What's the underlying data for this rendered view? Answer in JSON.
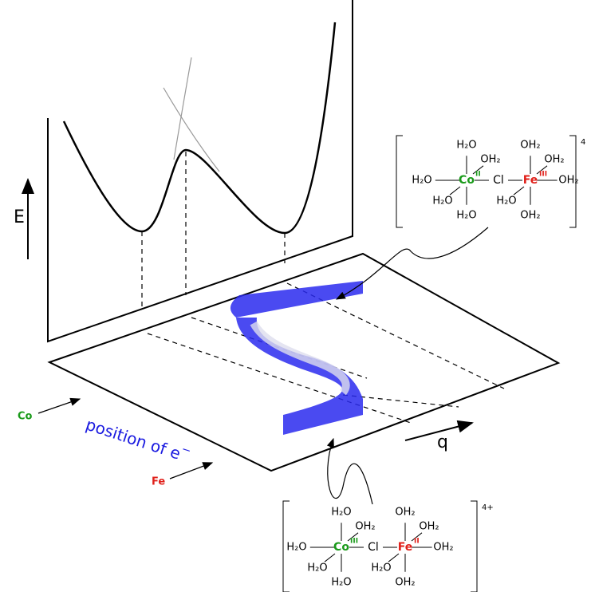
{
  "axes": {
    "energy": "E",
    "coordinate": "q"
  },
  "labels": {
    "co": "Co",
    "fe": "Fe",
    "position": "position of e",
    "superscript": "−"
  },
  "complexes": [
    {
      "charge": "4",
      "bridge": "Cl",
      "metals": [
        {
          "symbol": "Co",
          "ox": "II",
          "color": "#1a9a1a",
          "ligands": [
            "H₂O",
            "OH₂",
            "H₂O",
            "H₂O",
            "H₂O"
          ]
        },
        {
          "symbol": "Fe",
          "ox": "III",
          "color": "#e0201a",
          "ligands": [
            "OH₂",
            "OH₂",
            "OH₂",
            "H₂O",
            "OH₂"
          ]
        }
      ]
    },
    {
      "charge": "4+",
      "bridge": "Cl",
      "metals": [
        {
          "symbol": "Co",
          "ox": "III",
          "color": "#1a9a1a",
          "ligands": [
            "H₂O",
            "OH₂",
            "H₂O",
            "H₂O",
            "H₂O"
          ]
        },
        {
          "symbol": "Fe",
          "ox": "II",
          "color": "#e0201a",
          "ligands": [
            "OH₂",
            "OH₂",
            "OH₂",
            "H₂O",
            "OH₂"
          ]
        }
      ]
    }
  ]
}
